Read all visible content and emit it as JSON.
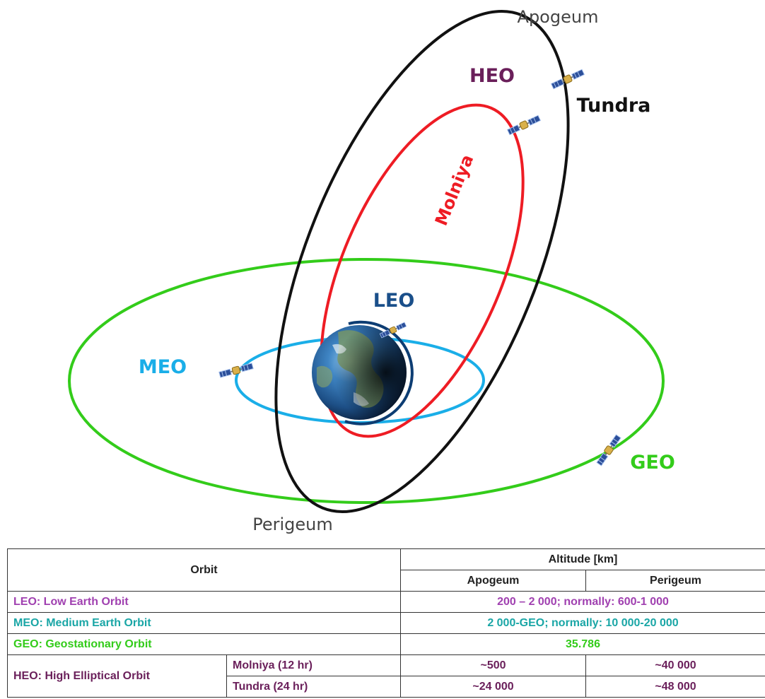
{
  "diagram": {
    "labels": {
      "apogeum": "Apogeum",
      "perigeum": "Perigeum",
      "heo": "HEO",
      "tundra": "Tundra",
      "molniya": "Molniya",
      "leo": "LEO",
      "meo": "MEO",
      "geo": "GEO"
    },
    "colors": {
      "heo_orbit": "#111111",
      "molniya_orbit": "#ee1c24",
      "geo_orbit": "#33cc1a",
      "meo_orbit": "#1aaee8",
      "leo_orbit": "#0d3d73",
      "heo_label": "#6a1f5a",
      "leo_label": "#1a4f8a",
      "meo_label": "#1aaee8",
      "geo_label": "#33cc1a"
    }
  },
  "table": {
    "header": {
      "orbit": "Orbit",
      "altitude": "Altitude [km]",
      "apogeum": "Apogeum",
      "perigeum": "Perigeum"
    },
    "rows": {
      "leo": {
        "name": "LEO:  Low Earth Orbit",
        "value": "200 – 2 000; normally: 600-1 000"
      },
      "meo": {
        "name": "MEO: Medium Earth Orbit",
        "value": "2 000-GEO; normally: 10 000-20 000"
      },
      "geo": {
        "name": "GEO: Geostationary Orbit",
        "value": "35.786"
      },
      "heo": {
        "name": "HEO: High Elliptical Orbit",
        "molniya": {
          "name": "Molniya (12 hr)",
          "apogeum": "~500",
          "perigeum": "~40 000"
        },
        "tundra": {
          "name": "Tundra (24 hr)",
          "apogeum": "~24 000",
          "perigeum": "~48 000"
        }
      }
    }
  }
}
